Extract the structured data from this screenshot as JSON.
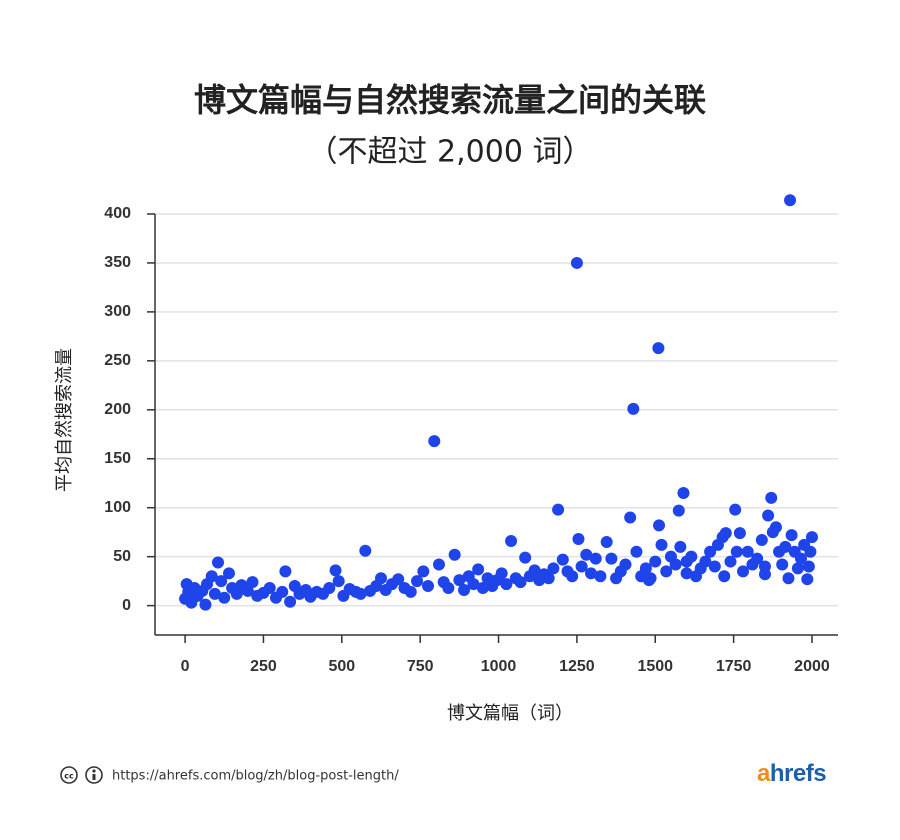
{
  "chart_data": {
    "type": "scatter",
    "title": "博文篇幅与自然搜索流量之间的关联",
    "subtitle": "（不超过 2,000 词）",
    "x_label": "博文篇幅（词）",
    "y_label": "平均自然搜索流量",
    "color": "#1f44ea",
    "grid": true,
    "xlim": [
      -96,
      2083
    ],
    "ylim": [
      -30,
      420
    ],
    "xticks": [
      0,
      250,
      500,
      750,
      1000,
      1250,
      1500,
      1750,
      2000
    ],
    "yticks": [
      0,
      50,
      100,
      150,
      200,
      250,
      300,
      350,
      400
    ],
    "x": [
      0,
      5,
      10,
      20,
      30,
      40,
      55,
      65,
      70,
      85,
      95,
      105,
      115,
      125,
      140,
      150,
      165,
      180,
      200,
      215,
      230,
      250,
      270,
      290,
      310,
      320,
      335,
      350,
      365,
      385,
      400,
      420,
      440,
      460,
      480,
      490,
      505,
      525,
      545,
      560,
      575,
      590,
      610,
      625,
      640,
      660,
      680,
      700,
      720,
      740,
      760,
      775,
      795,
      810,
      825,
      840,
      860,
      875,
      890,
      905,
      920,
      935,
      950,
      965,
      980,
      995,
      1010,
      1025,
      1040,
      1055,
      1070,
      1085,
      1100,
      1115,
      1130,
      1145,
      1160,
      1175,
      1190,
      1205,
      1220,
      1235,
      1250,
      1255,
      1265,
      1280,
      1295,
      1310,
      1325,
      1345,
      1360,
      1375,
      1390,
      1405,
      1420,
      1430,
      1440,
      1455,
      1470,
      1485,
      1500,
      1510,
      1512,
      1520,
      1535,
      1550,
      1565,
      1575,
      1580,
      1590,
      1600,
      1615,
      1630,
      1645,
      1660,
      1675,
      1690,
      1700,
      1715,
      1725,
      1740,
      1755,
      1760,
      1770,
      1780,
      1795,
      1810,
      1825,
      1840,
      1850,
      1860,
      1870,
      1875,
      1885,
      1895,
      1905,
      1915,
      1925,
      1930,
      1935,
      1945,
      1955,
      1965,
      1975,
      1985,
      1995,
      2000,
      1990,
      1480,
      1600,
      1720,
      1850
    ],
    "values": [
      7,
      22,
      14,
      3,
      18,
      10,
      15,
      1,
      22,
      30,
      12,
      44,
      25,
      8,
      33,
      18,
      12,
      21,
      15,
      24,
      10,
      13,
      18,
      8,
      14,
      35,
      4,
      20,
      12,
      16,
      9,
      14,
      12,
      18,
      36,
      25,
      10,
      17,
      14,
      12,
      56,
      15,
      20,
      28,
      16,
      22,
      27,
      18,
      14,
      25,
      35,
      20,
      168,
      42,
      24,
      18,
      52,
      26,
      16,
      30,
      22,
      37,
      18,
      28,
      20,
      26,
      33,
      22,
      66,
      28,
      24,
      49,
      30,
      36,
      26,
      32,
      28,
      38,
      98,
      47,
      35,
      30,
      350,
      68,
      40,
      52,
      33,
      48,
      30,
      65,
      48,
      28,
      35,
      42,
      90,
      201,
      55,
      30,
      38,
      28,
      45,
      263,
      82,
      62,
      35,
      50,
      42,
      97,
      60,
      115,
      45,
      50,
      30,
      38,
      45,
      55,
      40,
      62,
      70,
      74,
      45,
      98,
      55,
      74,
      35,
      55,
      42,
      48,
      67,
      40,
      92,
      110,
      75,
      80,
      55,
      42,
      60,
      28,
      414,
      72,
      55,
      38,
      48,
      62,
      27,
      55,
      70,
      40,
      26,
      33,
      30,
      32
    ]
  },
  "footer": {
    "url": "https://ahrefs.com/blog/zh/blog-post-length/",
    "logo": "ahrefs"
  }
}
